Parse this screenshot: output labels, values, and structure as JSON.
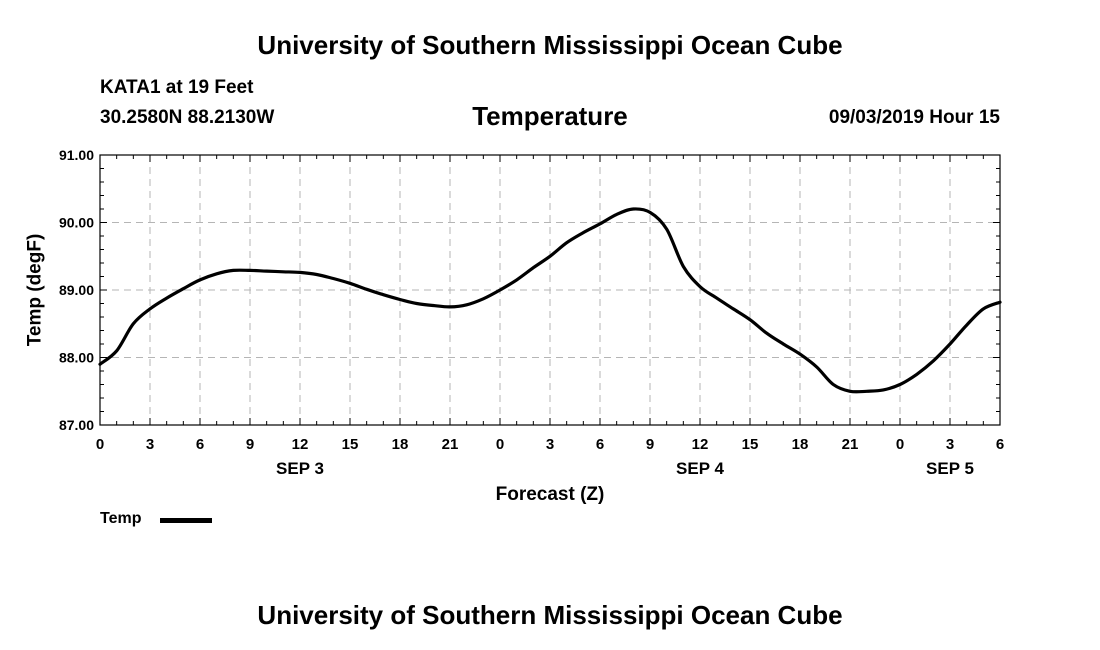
{
  "header": {
    "organization": "University of Southern Mississippi Ocean Cube",
    "station": "KATA1 at 19 Feet",
    "coordinates": "30.2580N 88.2130W",
    "variable": "Temperature",
    "datetime": "09/03/2019 Hour 15"
  },
  "footer": {
    "organization": "University of Southern Mississippi Ocean Cube"
  },
  "legend": {
    "label": "Temp",
    "color": "#000000"
  },
  "chart_data": {
    "type": "line",
    "title": "Temperature",
    "xlabel": "Forecast (Z)",
    "ylabel": "Temp (degF)",
    "xlim": [
      0,
      54
    ],
    "ylim": [
      87.0,
      91.0
    ],
    "yticks": [
      87.0,
      88.0,
      89.0,
      90.0,
      91.0
    ],
    "ytick_labels": [
      "87.00",
      "88.00",
      "89.00",
      "90.00",
      "91.00"
    ],
    "xticks": [
      0,
      3,
      6,
      9,
      12,
      15,
      18,
      21,
      24,
      27,
      30,
      33,
      36,
      39,
      42,
      45,
      48,
      51,
      54
    ],
    "xtick_labels": [
      "0",
      "3",
      "6",
      "9",
      "12",
      "15",
      "18",
      "21",
      "0",
      "3",
      "6",
      "9",
      "12",
      "15",
      "18",
      "21",
      "0",
      "3",
      "6"
    ],
    "date_labels": [
      {
        "x": 12,
        "label": "SEP 3"
      },
      {
        "x": 36,
        "label": "SEP 4"
      },
      {
        "x": 51,
        "label": "SEP 5"
      }
    ],
    "grid": true,
    "series": [
      {
        "name": "Temp",
        "color": "#000000",
        "x": [
          0,
          1,
          2,
          3,
          4,
          5,
          6,
          7,
          8,
          9,
          10,
          11,
          12,
          13,
          14,
          15,
          16,
          17,
          18,
          19,
          20,
          21,
          22,
          23,
          24,
          25,
          26,
          27,
          28,
          29,
          30,
          31,
          32,
          33,
          34,
          35,
          36,
          37,
          38,
          39,
          40,
          41,
          42,
          43,
          44,
          45,
          46,
          47,
          48,
          49,
          50,
          51,
          52,
          53,
          54
        ],
        "values": [
          87.9,
          88.1,
          88.5,
          88.72,
          88.88,
          89.02,
          89.15,
          89.24,
          89.29,
          89.29,
          89.28,
          89.27,
          89.26,
          89.23,
          89.17,
          89.1,
          89.01,
          88.93,
          88.86,
          88.8,
          88.77,
          88.75,
          88.78,
          88.87,
          89.0,
          89.15,
          89.33,
          89.5,
          89.7,
          89.85,
          89.98,
          90.12,
          90.2,
          90.15,
          89.9,
          89.35,
          89.05,
          88.88,
          88.72,
          88.56,
          88.36,
          88.2,
          88.05,
          87.86,
          87.6,
          87.5,
          87.5,
          87.52,
          87.6,
          87.75,
          87.95,
          88.2,
          88.48,
          88.72,
          88.82
        ]
      }
    ]
  }
}
